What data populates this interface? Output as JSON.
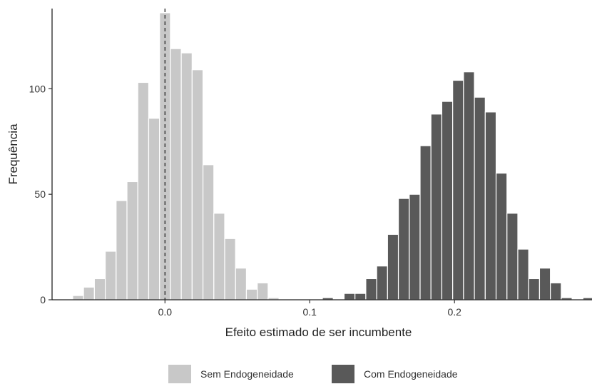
{
  "chart_data": {
    "type": "bar",
    "xlabel": "Efeito estimado de ser incumbente",
    "ylabel": "Frequência",
    "xlim": [
      -0.078,
      0.295
    ],
    "ylim": [
      0,
      138
    ],
    "x_ticks": [
      0.0,
      0.1,
      0.2
    ],
    "x_tick_labels": [
      "0.0",
      "0.1",
      "0.2"
    ],
    "y_ticks": [
      0,
      50,
      100
    ],
    "y_tick_labels": [
      "0",
      "50",
      "100"
    ],
    "bin_width": 0.0075,
    "reference_line": {
      "x": 0.0,
      "style": "dashed"
    },
    "grid": false,
    "legend_position": "bottom",
    "series": [
      {
        "name": "Sem Endogeneidade",
        "color": "#c8c8c8",
        "bins": [
          {
            "x": -0.06,
            "y": 2
          },
          {
            "x": -0.0525,
            "y": 6
          },
          {
            "x": -0.045,
            "y": 10
          },
          {
            "x": -0.0375,
            "y": 23
          },
          {
            "x": -0.03,
            "y": 47
          },
          {
            "x": -0.0225,
            "y": 56
          },
          {
            "x": -0.015,
            "y": 103
          },
          {
            "x": -0.0075,
            "y": 86
          },
          {
            "x": 0.0,
            "y": 136
          },
          {
            "x": 0.0075,
            "y": 119
          },
          {
            "x": 0.015,
            "y": 117
          },
          {
            "x": 0.0225,
            "y": 109
          },
          {
            "x": 0.03,
            "y": 64
          },
          {
            "x": 0.0375,
            "y": 41
          },
          {
            "x": 0.045,
            "y": 29
          },
          {
            "x": 0.0525,
            "y": 15
          },
          {
            "x": 0.06,
            "y": 5
          },
          {
            "x": 0.0675,
            "y": 8
          },
          {
            "x": 0.075,
            "y": 1
          }
        ]
      },
      {
        "name": "Com Endogeneidade",
        "color": "#595959",
        "bins": [
          {
            "x": 0.1125,
            "y": 1
          },
          {
            "x": 0.1275,
            "y": 3
          },
          {
            "x": 0.135,
            "y": 3
          },
          {
            "x": 0.1425,
            "y": 10
          },
          {
            "x": 0.15,
            "y": 16
          },
          {
            "x": 0.1575,
            "y": 31
          },
          {
            "x": 0.165,
            "y": 48
          },
          {
            "x": 0.1725,
            "y": 50
          },
          {
            "x": 0.18,
            "y": 73
          },
          {
            "x": 0.1875,
            "y": 88
          },
          {
            "x": 0.195,
            "y": 94
          },
          {
            "x": 0.2025,
            "y": 104
          },
          {
            "x": 0.21,
            "y": 108
          },
          {
            "x": 0.2175,
            "y": 96
          },
          {
            "x": 0.225,
            "y": 89
          },
          {
            "x": 0.2325,
            "y": 60
          },
          {
            "x": 0.24,
            "y": 41
          },
          {
            "x": 0.2475,
            "y": 24
          },
          {
            "x": 0.255,
            "y": 10
          },
          {
            "x": 0.2625,
            "y": 15
          },
          {
            "x": 0.27,
            "y": 8
          },
          {
            "x": 0.2775,
            "y": 1
          },
          {
            "x": 0.2925,
            "y": 1
          }
        ]
      }
    ]
  }
}
